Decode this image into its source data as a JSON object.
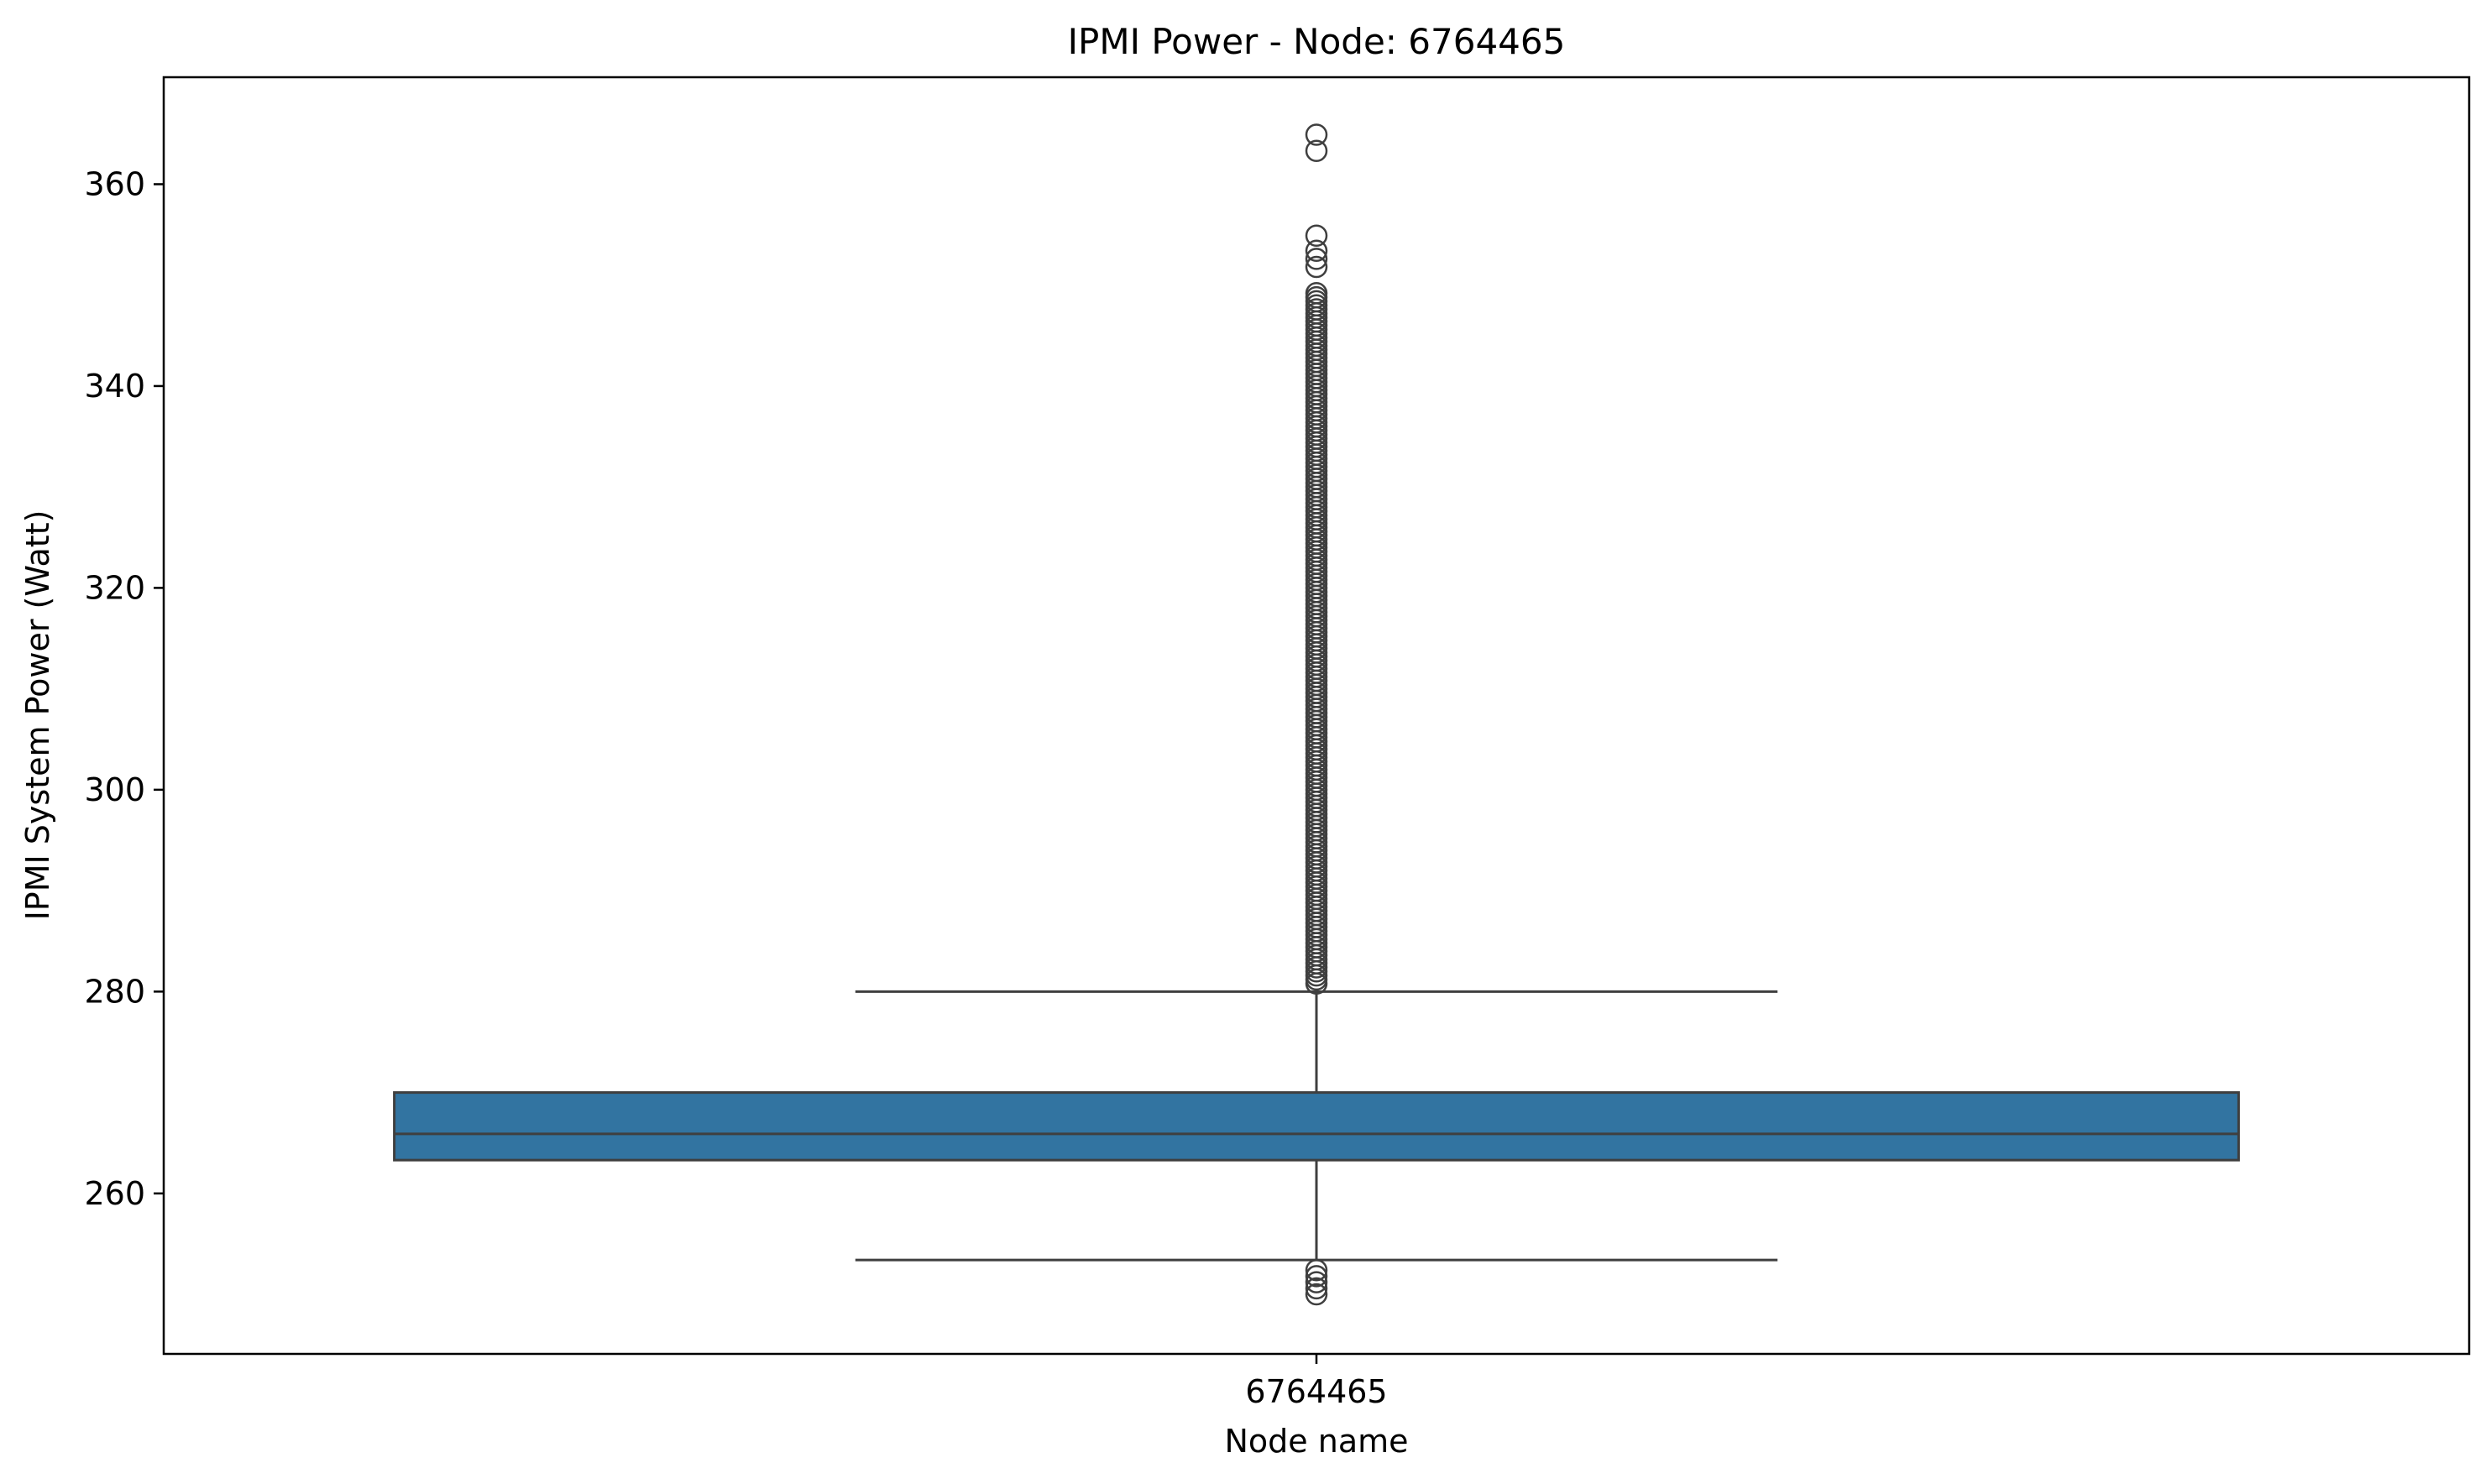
{
  "chart_data": {
    "type": "box",
    "title": "IPMI Power - Node: 6764465",
    "xlabel": "Node name",
    "ylabel": "IPMI System Power (Watt)",
    "ylim": [
      244.1,
      370.6
    ],
    "yticks": [
      260,
      280,
      300,
      320,
      340,
      360
    ],
    "grid": false,
    "categories": [
      "6764465"
    ],
    "boxes": [
      {
        "category": "6764465",
        "whisker_low": 253.4,
        "q1": 263.3,
        "median": 265.9,
        "q3": 270.0,
        "whisker_high": 280.0,
        "fliers_high": [
          280.8,
          281.2,
          281.6,
          282.0,
          282.4,
          282.8,
          283.2,
          283.6,
          284.0,
          284.4,
          284.8,
          285.2,
          285.6,
          286.0,
          286.4,
          286.8,
          287.2,
          287.6,
          288.0,
          288.4,
          288.8,
          289.2,
          289.6,
          290.0,
          290.4,
          290.8,
          291.2,
          291.6,
          292.0,
          292.4,
          292.8,
          293.2,
          293.6,
          294.0,
          294.4,
          294.8,
          295.2,
          295.6,
          296.0,
          296.4,
          296.8,
          297.2,
          297.6,
          298.0,
          298.4,
          298.8,
          299.2,
          299.6,
          300.0,
          300.4,
          300.8,
          301.2,
          301.6,
          302.0,
          302.4,
          302.8,
          303.2,
          303.6,
          304.0,
          304.4,
          304.8,
          305.2,
          305.6,
          306.0,
          306.4,
          306.8,
          307.2,
          307.6,
          308.0,
          308.4,
          308.8,
          309.2,
          309.6,
          310.0,
          310.4,
          310.8,
          311.2,
          311.6,
          312.0,
          312.4,
          312.8,
          313.2,
          313.6,
          314.0,
          314.4,
          314.8,
          315.2,
          315.6,
          316.0,
          316.4,
          316.8,
          317.2,
          317.6,
          318.0,
          318.4,
          318.8,
          319.2,
          319.6,
          320.0,
          320.4,
          320.8,
          321.2,
          321.6,
          322.0,
          322.4,
          322.8,
          323.2,
          323.6,
          324.0,
          324.4,
          324.8,
          325.2,
          325.6,
          326.0,
          326.4,
          326.8,
          327.2,
          327.6,
          328.0,
          328.4,
          328.8,
          329.2,
          329.6,
          330.0,
          330.4,
          330.8,
          331.2,
          331.6,
          332.0,
          332.4,
          332.8,
          333.2,
          333.6,
          334.0,
          334.4,
          334.8,
          335.2,
          335.6,
          336.0,
          336.4,
          336.8,
          337.2,
          337.6,
          338.0,
          338.4,
          338.8,
          339.2,
          339.6,
          340.0,
          340.4,
          340.8,
          341.2,
          341.6,
          342.0,
          342.4,
          342.8,
          343.2,
          343.6,
          344.0,
          344.4,
          344.8,
          345.2,
          345.6,
          346.0,
          346.4,
          346.8,
          347.2,
          347.6,
          348.0,
          348.4,
          348.8,
          349.2,
          351.8,
          352.6,
          353.4,
          354.9,
          363.3,
          364.9
        ],
        "fliers_low": [
          250.0,
          250.6,
          251.2,
          251.8,
          252.4
        ]
      }
    ],
    "colors": {
      "box_fill": "#3274a1",
      "lines": "#3f3f3f",
      "axes": "#000000",
      "background": "#ffffff"
    }
  }
}
